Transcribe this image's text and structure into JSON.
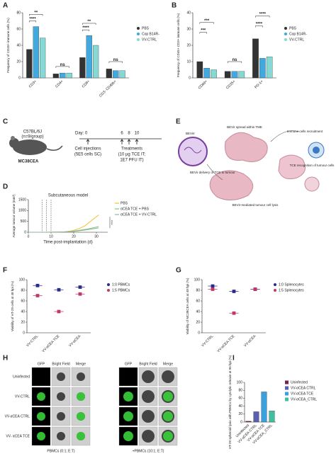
{
  "chart_data": [
    {
      "type": "bar",
      "label": "A",
      "ylabel": "Frequency of CD45+ immune cells (%)",
      "categories": [
        "CD3+",
        "CD4+",
        "CD8+",
        "CD3- CD49b+"
      ],
      "series": [
        {
          "name": "PBS",
          "color": "#333333",
          "values": [
            35,
            5,
            25,
            11
          ]
        },
        {
          "name": "Cop B14R-",
          "color": "#3fa9e0",
          "values": [
            63,
            6,
            52,
            9
          ]
        },
        {
          "name": "VV-CTRL",
          "color": "#86d8d2",
          "values": [
            49,
            6,
            40,
            9
          ]
        }
      ],
      "ylim": [
        0,
        80
      ],
      "yticks": [
        0,
        20,
        40,
        60,
        80
      ],
      "legend": "right",
      "annotations": [
        "**",
        "****",
        "ns",
        "**",
        "****",
        "ns"
      ]
    },
    {
      "type": "bar",
      "label": "B",
      "ylabel": "Frequency of CD45+ CD3+ immune cells (%)",
      "categories": [
        "CD69+",
        "CD25+",
        "PD-1+"
      ],
      "series": [
        {
          "name": "PBS",
          "color": "#333333",
          "values": [
            10,
            4,
            24
          ]
        },
        {
          "name": "Cop B14R-",
          "color": "#3fa9e0",
          "values": [
            6,
            4,
            12
          ]
        },
        {
          "name": "VV-CTRL",
          "color": "#86d8d2",
          "values": [
            5,
            4,
            13
          ]
        }
      ],
      "ylim": [
        0,
        40
      ],
      "yticks": [
        0,
        10,
        20,
        30,
        40
      ],
      "legend": "right",
      "annotations": [
        "***",
        "***",
        "ns",
        "****",
        "****"
      ]
    },
    {
      "type": "line",
      "label": "D",
      "title": "Subcutaneous model",
      "xlabel": "Time post-implantation (d)",
      "ylabel": "Average tumour volume (mm³)",
      "x": [
        0,
        6,
        8,
        10,
        13,
        16,
        19,
        22,
        25,
        28,
        31
      ],
      "series": [
        {
          "name": "PBS",
          "color": "#f2c12e",
          "values": [
            0,
            0,
            0,
            5,
            10,
            20,
            60,
            150,
            300,
            550,
            800
          ]
        },
        {
          "name": "αCEA TCE + PBS",
          "color": "#77c76b",
          "values": [
            0,
            0,
            0,
            5,
            10,
            15,
            30,
            60,
            100,
            150,
            200
          ]
        },
        {
          "name": "αCEA TCE + VV-CTRL",
          "color": "#8fb0a8",
          "values": [
            0,
            0,
            0,
            5,
            10,
            20,
            40,
            80,
            130,
            190,
            260
          ]
        }
      ],
      "vlines": [
        6,
        8,
        10
      ],
      "xlim": [
        0,
        35
      ],
      "xticks": [
        0,
        10,
        20,
        30
      ],
      "ylim": [
        0,
        1500
      ],
      "yticks": [
        0,
        500,
        1000,
        1500
      ],
      "legend": "right",
      "annotations": [
        "****"
      ]
    },
    {
      "type": "strip",
      "label": "F",
      "ylabel": "Viability of HT-29 cells at 48 hpi (%)",
      "categories": [
        "VV-CTRL",
        "VV-αCEA TCE",
        "VV-αCEA"
      ],
      "series": [
        {
          "name": "1:0 PBMCs",
          "color": "#2b2b8c",
          "values": [
            89,
            81,
            86
          ]
        },
        {
          "name": "1:5 PBMCs",
          "color": "#c0396b",
          "values": [
            70,
            40,
            73
          ]
        }
      ],
      "ylim": [
        0,
        100
      ],
      "yticks": [
        0,
        20,
        40,
        60,
        80,
        100
      ],
      "legend": "right"
    },
    {
      "type": "strip",
      "label": "G",
      "ylabel": "Viability of MC38CEA cells at 48 hpi (%)",
      "categories": [
        "VV-CTRL",
        "VV-αCEA TCE",
        "VV-αCEA"
      ],
      "series": [
        {
          "name": "1:0 Splenocytes",
          "color": "#2b2b8c",
          "values": [
            88,
            78,
            82
          ]
        },
        {
          "name": "1:5 Splenocytes",
          "color": "#c0396b",
          "values": [
            82,
            37,
            82
          ]
        }
      ],
      "ylim": [
        0,
        100
      ],
      "yticks": [
        0,
        20,
        40,
        60,
        80,
        100
      ],
      "legend": "right"
    },
    {
      "type": "colorbar",
      "label": "I",
      "ylabel": "HT-29 spheroid lysis with PBMCs by cytolytic release at 96 hpi (%)",
      "categories": [
        "Uninfected",
        "VV-αCEA CTRL",
        "VV-αCEA TCE",
        "VV-αCEA_CTRL"
      ],
      "values": [
        2,
        26,
        76,
        28
      ],
      "colors": [
        "#7b1f4e",
        "#5a5fb0",
        "#3aa0e0",
        "#3fbfa0"
      ],
      "ylim": [
        0,
        100
      ],
      "yticks": [
        0,
        20,
        40,
        60,
        80,
        100
      ],
      "legend": "right"
    }
  ],
  "schematic_c": {
    "label": "C",
    "strain": "C57BL/6J",
    "group": "(n=9/group)",
    "model": "MC38CEA",
    "day": "Day: 0",
    "days": [
      "6",
      "8",
      "10"
    ],
    "injection": "Cell injections",
    "injection_detail": "(5E5 cells SC)",
    "treatment": "Treatments",
    "treatment_detail_1": "(10 µg TCE IT;",
    "treatment_detail_2": "1E7 PFU IT)"
  },
  "schematic_e": {
    "label": "E",
    "virus": "BEVirr",
    "spread": "BEVir spread within TME",
    "recruit": "Immune cells recruitment",
    "delivery": "BEVir delivery of TCE to tumour",
    "recognition": "TCE recognition of tumour cells",
    "lysis": "BEVir-mediated tumour cell lysis"
  },
  "panel_h": {
    "label": "H",
    "columns": [
      "GFP",
      "Bright Field",
      "Merge"
    ],
    "rows": [
      "Uninfected",
      "VV-CTRL",
      "VV-αCEA CTRL",
      "VV- αCEA TCE"
    ],
    "footers": [
      "PBMCs (0:1; E:T)",
      "+PBMCs (10:1; E:T)"
    ]
  }
}
